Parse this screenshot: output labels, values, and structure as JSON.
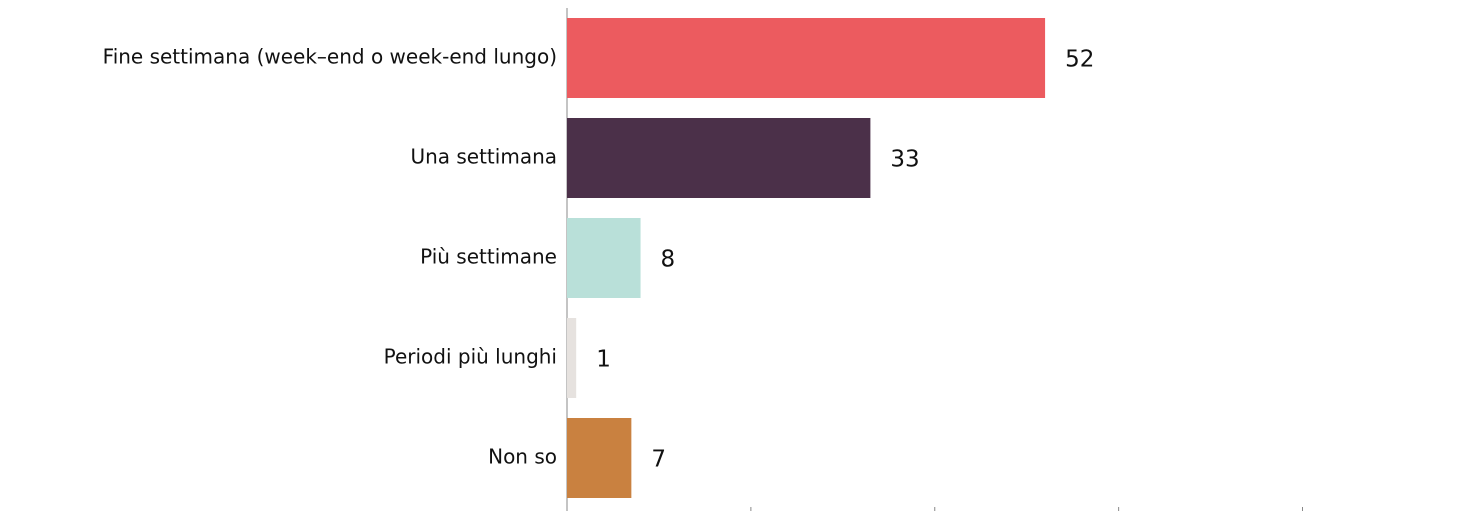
{
  "chart_data": {
    "type": "barh",
    "categories": [
      "Fine settimana (week–end o week-end lungo)",
      "Una settimana",
      "Più settimane",
      "Periodi più lunghi",
      "Non so"
    ],
    "values": [
      52,
      33,
      8,
      1,
      7
    ],
    "colors": [
      "#ec5b5f",
      "#4b3049",
      "#b9e0d9",
      "#e6e2df",
      "#c98140"
    ],
    "xlim": [
      0,
      98
    ],
    "xticks": [
      0,
      20,
      40,
      60,
      80
    ]
  }
}
